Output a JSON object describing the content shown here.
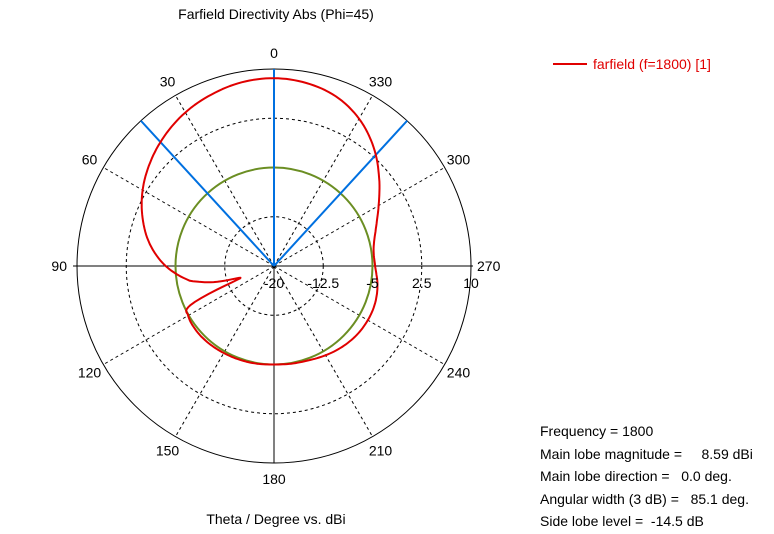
{
  "chart_data": {
    "type": "polar-line",
    "title": "Farfield Directivity Abs (Phi=45)",
    "xlabel": "Theta / Degree vs. dBi",
    "angle_labels": [
      "0",
      "30",
      "60",
      "90",
      "120",
      "150",
      "180",
      "210",
      "240",
      "270",
      "300",
      "330"
    ],
    "radial_ticks": [
      "-20",
      "-12.5",
      "-5",
      "2.5",
      "10"
    ],
    "radial_range": [
      -20,
      10
    ],
    "series": [
      {
        "name": "farfield (f=1800) [1]",
        "color": "#e00000",
        "theta_deg": [
          0,
          10,
          20,
          30,
          40,
          50,
          60,
          70,
          80,
          90,
          100,
          105,
          110,
          115,
          120,
          130,
          140,
          150,
          160,
          170,
          180,
          190,
          200,
          210,
          220,
          230,
          240,
          250,
          260,
          270,
          280,
          290,
          300,
          310,
          320,
          330,
          340,
          350
        ],
        "directivity_dbi": [
          8.6,
          8.4,
          7.8,
          7.0,
          5.9,
          4.6,
          3.1,
          1.3,
          -0.8,
          -3.5,
          -7.0,
          -10.5,
          -14.5,
          -6.0,
          -4.9,
          -4.6,
          -4.6,
          -4.7,
          -4.8,
          -4.9,
          -5.0,
          -4.9,
          -4.7,
          -4.3,
          -3.9,
          -3.6,
          -3.5,
          -3.6,
          -4.0,
          -4.6,
          -4.6,
          -3.5,
          -1.6,
          0.9,
          3.6,
          5.9,
          7.5,
          8.3
        ]
      }
    ],
    "overlays": {
      "circle_color": "#6b8e23",
      "circle_level_dbi": -5.0,
      "main_lobe_color": "#0070e0",
      "beam_lines_deg": [
        0,
        42.5,
        -42.5
      ]
    },
    "info": {
      "frequency": "Frequency = 1800",
      "magnitude": "Main lobe magnitude =     8.59 dBi",
      "direction": "Main lobe direction =   0.0 deg.",
      "width": "Angular width (3 dB) =   85.1 deg.",
      "sidelobe": "Side lobe level =  -14.5 dB"
    }
  }
}
